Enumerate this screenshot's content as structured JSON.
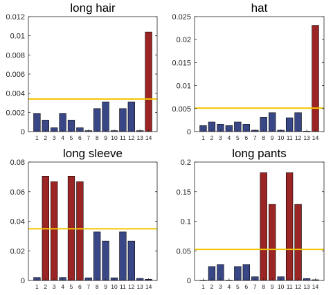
{
  "chart_data": [
    {
      "type": "bar",
      "title": "long hair",
      "categories": [
        "1",
        "2",
        "3",
        "4",
        "5",
        "6",
        "7",
        "8",
        "9",
        "10",
        "11",
        "12",
        "13",
        "14"
      ],
      "values": [
        0.0019,
        0.0012,
        0.0004,
        0.0019,
        0.0012,
        0.0004,
        0.0001,
        0.0024,
        0.0031,
        0.0001,
        0.0024,
        0.0031,
        0.0001,
        0.0104
      ],
      "highlighted": [
        false,
        false,
        false,
        false,
        false,
        false,
        false,
        false,
        false,
        false,
        false,
        false,
        false,
        true
      ],
      "threshold": 0.0034,
      "ylim": [
        0,
        0.012
      ],
      "yticks": [
        "0",
        "0.002",
        "0.004",
        "0.006",
        "0.008",
        "0.01",
        "0.012"
      ],
      "ytick_values": [
        0,
        0.002,
        0.004,
        0.006,
        0.008,
        0.01,
        0.012
      ]
    },
    {
      "type": "bar",
      "title": "hat",
      "categories": [
        "1",
        "2",
        "3",
        "4",
        "5",
        "6",
        "7",
        "8",
        "9",
        "10",
        "11",
        "12",
        "13",
        "14"
      ],
      "values": [
        0.0013,
        0.0021,
        0.0016,
        0.0013,
        0.0021,
        0.0016,
        0.0003,
        0.0031,
        0.0041,
        0.0003,
        0.003,
        0.0041,
        0.0001,
        0.0231
      ],
      "highlighted": [
        false,
        false,
        false,
        false,
        false,
        false,
        false,
        false,
        false,
        false,
        false,
        false,
        false,
        true
      ],
      "threshold": 0.0051,
      "ylim": [
        0,
        0.025
      ],
      "yticks": [
        "0",
        "0.005",
        "0.01",
        "0.015",
        "0.02",
        "0.025"
      ],
      "ytick_values": [
        0,
        0.005,
        0.01,
        0.015,
        0.02,
        0.025
      ]
    },
    {
      "type": "bar",
      "title": "long sleeve",
      "categories": [
        "1",
        "2",
        "3",
        "4",
        "5",
        "6",
        "7",
        "8",
        "9",
        "10",
        "11",
        "12",
        "13",
        "14"
      ],
      "values": [
        0.002,
        0.0705,
        0.0667,
        0.002,
        0.0705,
        0.0667,
        0.0018,
        0.0328,
        0.0266,
        0.0018,
        0.0328,
        0.0266,
        0.0014,
        0.0008
      ],
      "highlighted": [
        false,
        true,
        true,
        false,
        true,
        true,
        false,
        false,
        false,
        false,
        false,
        false,
        false,
        false
      ],
      "threshold": 0.0349,
      "ylim": [
        0,
        0.08
      ],
      "yticks": [
        "0",
        "0.02",
        "0.04",
        "0.06",
        "0.08"
      ],
      "ytick_values": [
        0,
        0.02,
        0.04,
        0.06,
        0.08
      ]
    },
    {
      "type": "bar",
      "title": "long pants",
      "categories": [
        "1",
        "2",
        "3",
        "4",
        "5",
        "6",
        "7",
        "8",
        "9",
        "10",
        "11",
        "12",
        "13",
        "14"
      ],
      "values": [
        0.0002,
        0.0235,
        0.027,
        0.0002,
        0.0235,
        0.027,
        0.0062,
        0.182,
        0.1285,
        0.0062,
        0.182,
        0.1285,
        0.0033,
        0.0012
      ],
      "highlighted": [
        false,
        false,
        false,
        false,
        false,
        false,
        false,
        true,
        true,
        false,
        true,
        true,
        false,
        false
      ],
      "threshold": 0.0525,
      "ylim": [
        0,
        0.2
      ],
      "yticks": [
        "0",
        "0.05",
        "0.1",
        "0.15",
        "0.2"
      ],
      "ytick_values": [
        0,
        0.05,
        0.1,
        0.15,
        0.2
      ]
    }
  ],
  "colors": {
    "bar_normal": "#3a4787",
    "bar_highlight": "#9b2424",
    "bar_stroke": "#000000",
    "threshold_line": "#f5c400"
  }
}
